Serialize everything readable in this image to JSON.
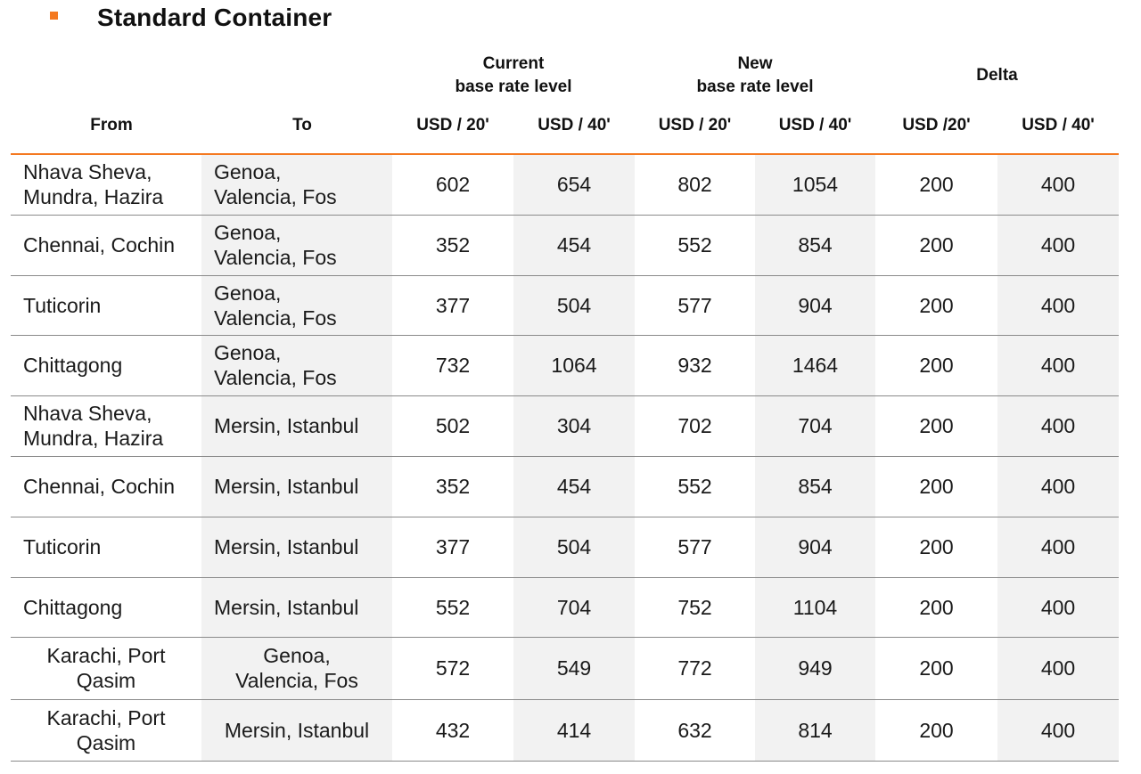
{
  "title": "Standard Container",
  "groups": {
    "current": "Current\nbase rate level",
    "new": "New\nbase rate level",
    "delta": "Delta"
  },
  "columns": {
    "from": "From",
    "to": "To",
    "cur20": "USD / 20'",
    "cur40": "USD / 40'",
    "new20": "USD / 20'",
    "new40": "USD / 40'",
    "delta20": "USD /20'",
    "delta40": "USD / 40'"
  },
  "rows": [
    {
      "from": "Nhava Sheva,\nMundra, Hazira",
      "to": "Genoa,\nValencia, Fos",
      "cur20": "602",
      "cur40": "654",
      "new20": "802",
      "new40": "1054",
      "delta20": "200",
      "delta40": "400"
    },
    {
      "from": "Chennai, Cochin",
      "to": "Genoa,\nValencia, Fos",
      "cur20": "352",
      "cur40": "454",
      "new20": "552",
      "new40": "854",
      "delta20": "200",
      "delta40": "400"
    },
    {
      "from": "Tuticorin",
      "to": "Genoa,\nValencia, Fos",
      "cur20": "377",
      "cur40": "504",
      "new20": "577",
      "new40": "904",
      "delta20": "200",
      "delta40": "400"
    },
    {
      "from": "Chittagong",
      "to": "Genoa,\nValencia, Fos",
      "cur20": "732",
      "cur40": "1064",
      "new20": "932",
      "new40": "1464",
      "delta20": "200",
      "delta40": "400"
    },
    {
      "from": "Nhava Sheva,\nMundra, Hazira",
      "to": "Mersin, Istanbul",
      "cur20": "502",
      "cur40": "304",
      "new20": "702",
      "new40": "704",
      "delta20": "200",
      "delta40": "400"
    },
    {
      "from": "Chennai, Cochin",
      "to": "Mersin, Istanbul",
      "cur20": "352",
      "cur40": "454",
      "new20": "552",
      "new40": "854",
      "delta20": "200",
      "delta40": "400"
    },
    {
      "from": "Tuticorin",
      "to": "Mersin, Istanbul",
      "cur20": "377",
      "cur40": "504",
      "new20": "577",
      "new40": "904",
      "delta20": "200",
      "delta40": "400"
    },
    {
      "from": "Chittagong",
      "to": "Mersin, Istanbul",
      "cur20": "552",
      "cur40": "704",
      "new20": "752",
      "new40": "1104",
      "delta20": "200",
      "delta40": "400"
    },
    {
      "from": "Karachi, Port\nQasim",
      "to": "Genoa,\nValencia, Fos",
      "cur20": "572",
      "cur40": "549",
      "new20": "772",
      "new40": "949",
      "delta20": "200",
      "delta40": "400"
    },
    {
      "from": "Karachi, Port\nQasim",
      "to": "Mersin, Istanbul",
      "cur20": "432",
      "cur40": "414",
      "new20": "632",
      "new40": "814",
      "delta20": "200",
      "delta40": "400"
    }
  ]
}
